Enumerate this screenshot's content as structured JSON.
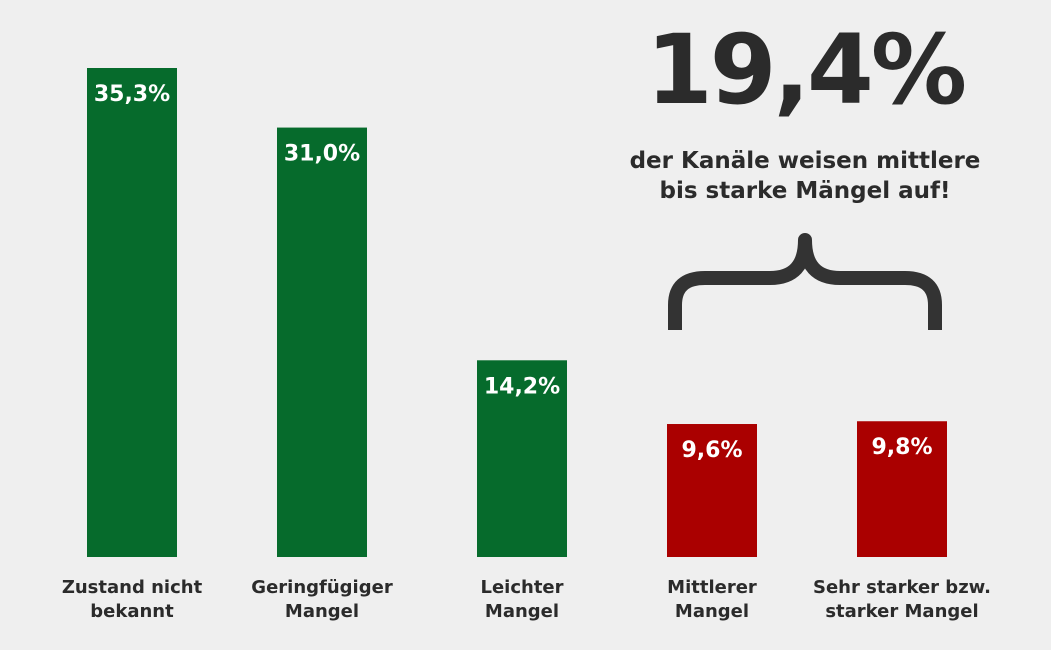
{
  "chart_data": {
    "type": "bar",
    "categories": [
      [
        "Zustand nicht",
        "bekannt"
      ],
      [
        "Geringfügiger",
        "Mangel"
      ],
      [
        "Leichter",
        "Mangel"
      ],
      [
        "Mittlerer",
        "Mangel"
      ],
      [
        "Sehr starker bzw.",
        "starker Mangel"
      ]
    ],
    "values": [
      35.3,
      31.0,
      14.2,
      9.6,
      9.8
    ],
    "value_labels": [
      "35,3%",
      "31,0%",
      "14,2%",
      "9,6%",
      "9,8%"
    ],
    "colors": [
      "#066b2c",
      "#066b2c",
      "#066b2c",
      "#aa0000",
      "#aa0000"
    ],
    "ylim": [
      0,
      35.3
    ],
    "grid": false,
    "annotation": {
      "value": "19,4%",
      "caption": [
        "der Kanäle weisen mittlere",
        "bis starke Mängel auf!"
      ],
      "brace_color": "#333333"
    }
  }
}
